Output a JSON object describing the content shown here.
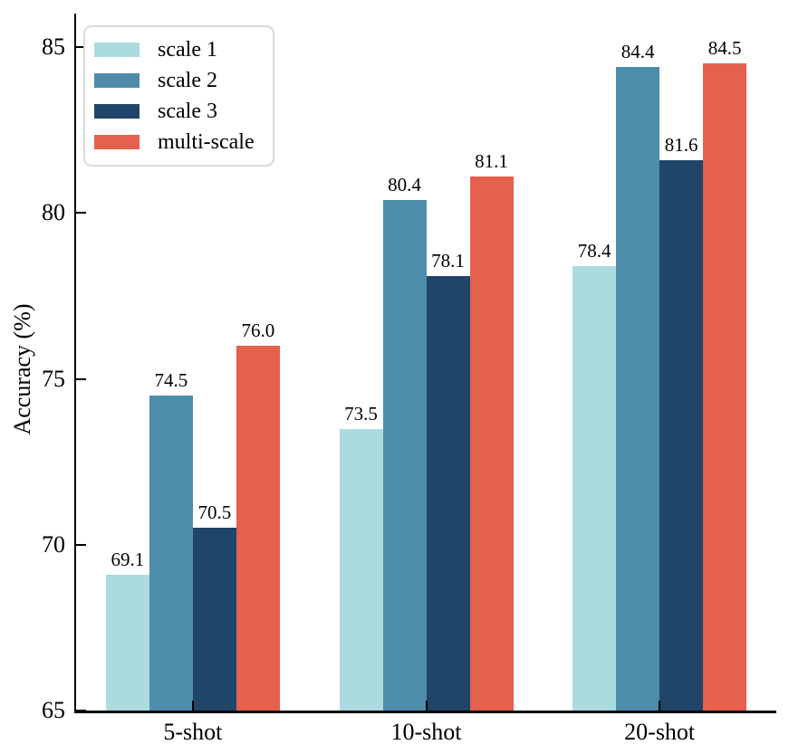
{
  "chart_data": {
    "type": "bar",
    "title": "",
    "xlabel": "",
    "ylabel": "Accuracy (%)",
    "categories": [
      "5-shot",
      "10-shot",
      "20-shot"
    ],
    "series": [
      {
        "name": "scale 1",
        "color": "#ABDADF",
        "values": [
          69.1,
          73.5,
          78.4
        ]
      },
      {
        "name": "scale 2",
        "color": "#4E8CAB",
        "values": [
          74.5,
          80.4,
          84.4
        ]
      },
      {
        "name": "scale 3",
        "color": "#1F4568",
        "values": [
          70.5,
          78.1,
          81.6
        ]
      },
      {
        "name": "multi-scale",
        "color": "#E6604E",
        "values": [
          76.0,
          81.1,
          84.5
        ]
      }
    ],
    "ylim": [
      65,
      85
    ],
    "yticks": [
      "65",
      "70",
      "75",
      "80",
      "85"
    ],
    "bar_value_labels": true,
    "value_label_decimals": 1,
    "legend_position": "upper-left",
    "grid": false,
    "tick_direction": "in",
    "axis_color": "#000000",
    "legend_border_color": "#d9d9d9",
    "background_color": "#ffffff"
  }
}
